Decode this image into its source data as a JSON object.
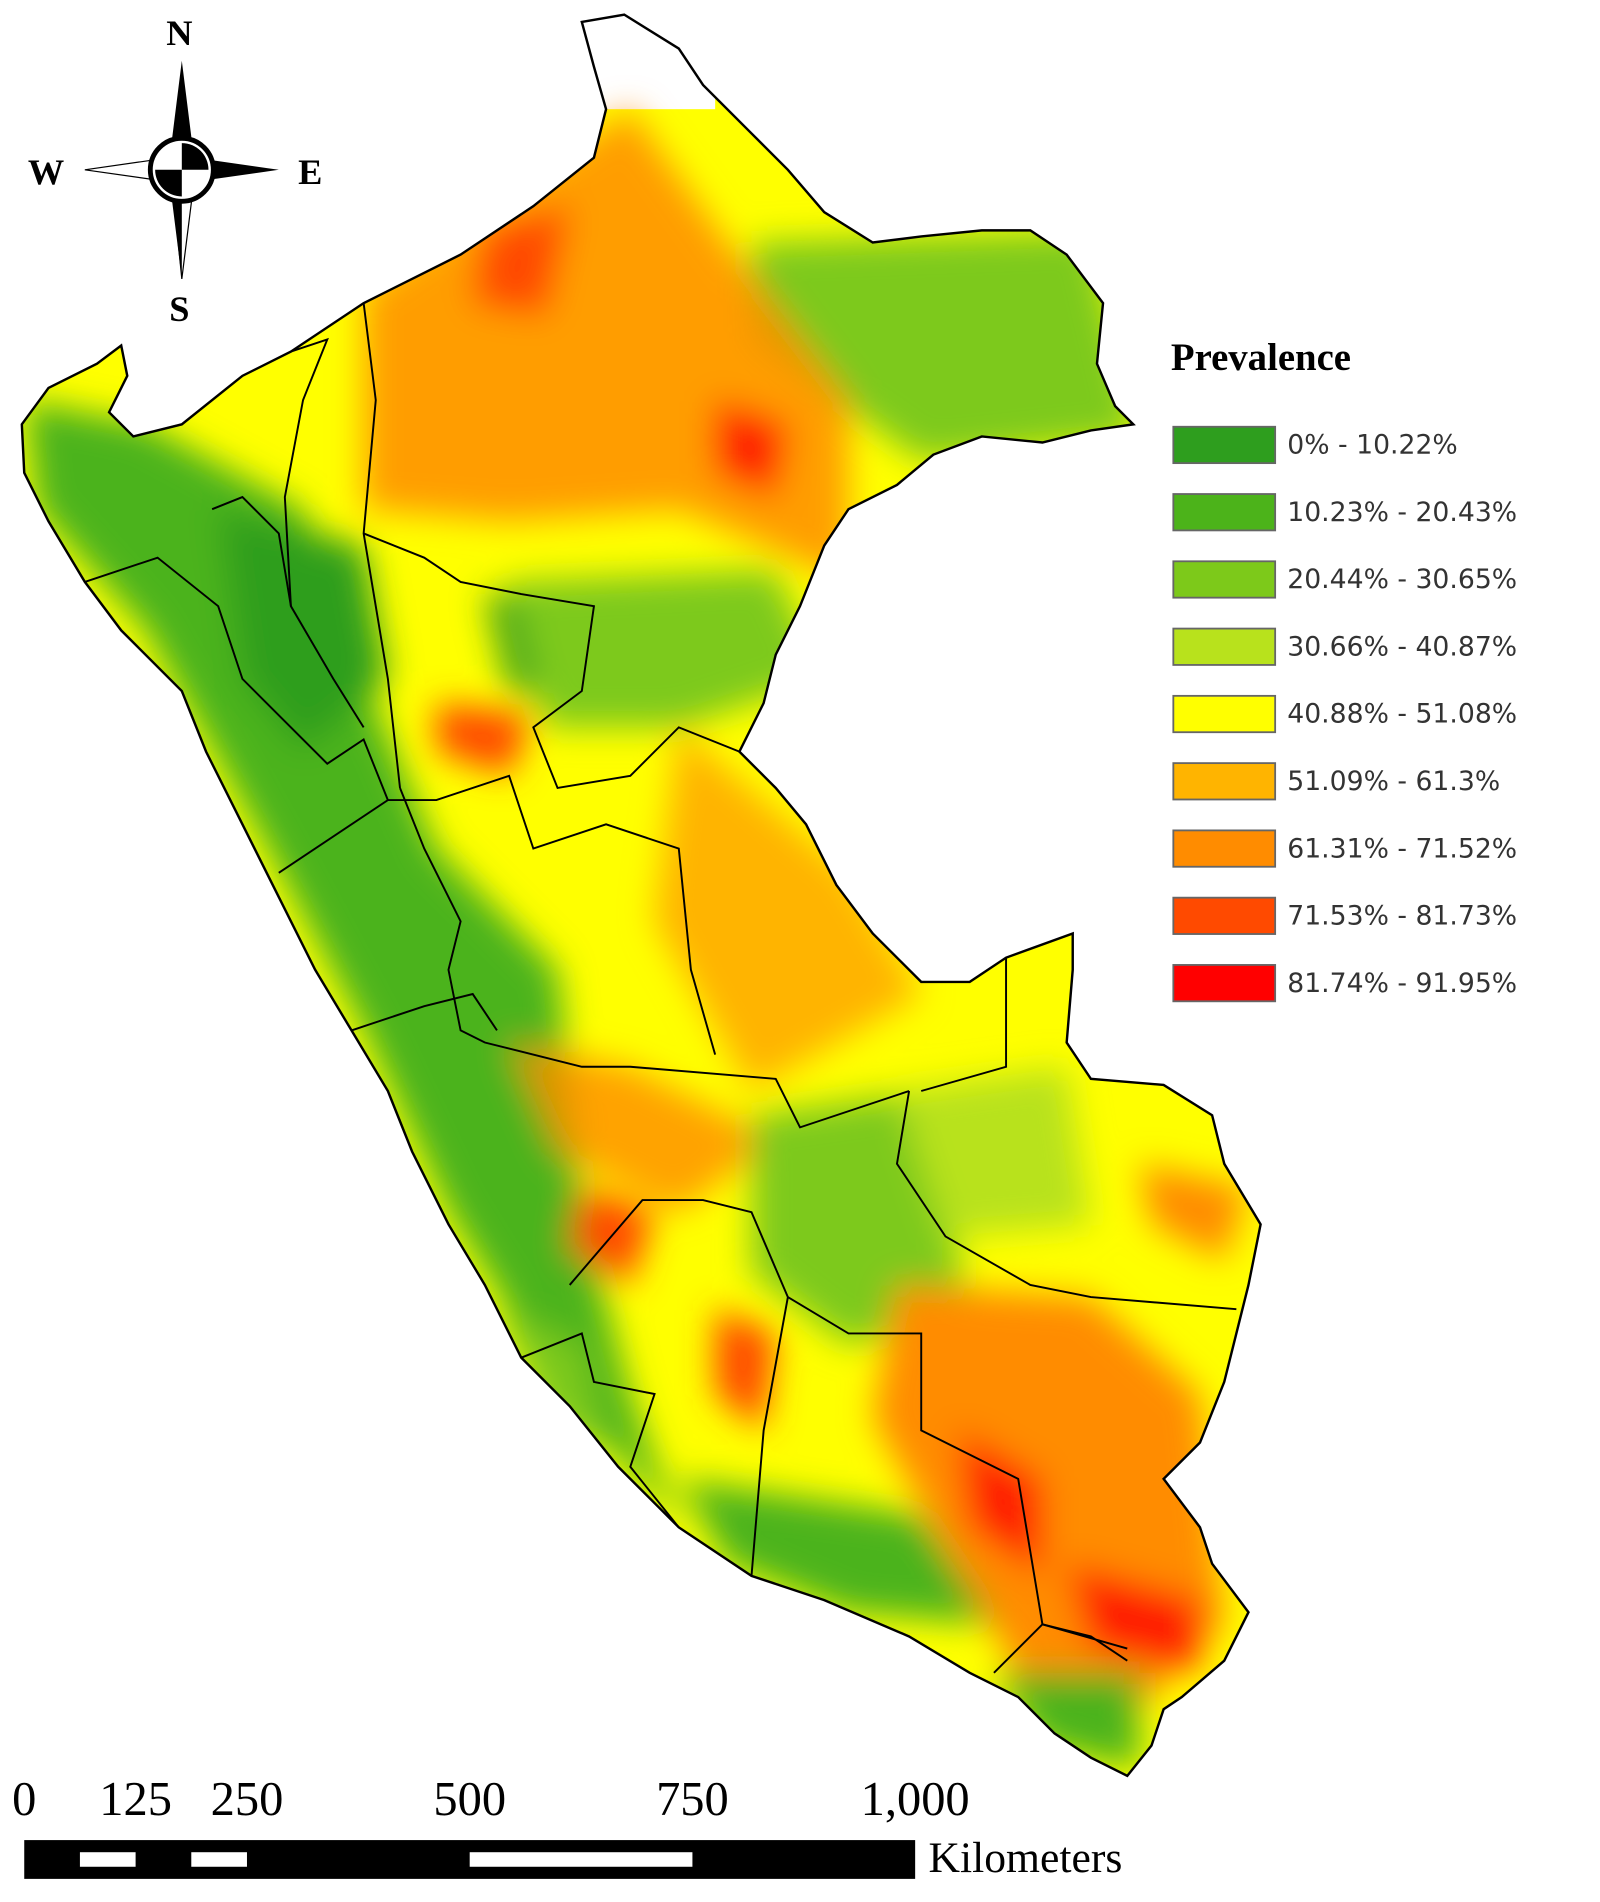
{
  "compass": {
    "north": "N",
    "south": "S",
    "east": "E",
    "west": "W"
  },
  "legend": {
    "title": "Prevalence",
    "items": [
      {
        "label": "0% - 10.22%",
        "color": "#2e9e1e"
      },
      {
        "label": "10.23% - 20.43%",
        "color": "#4cb31a"
      },
      {
        "label": "20.44% - 30.65%",
        "color": "#7dc91a"
      },
      {
        "label": "30.66% - 40.87%",
        "color": "#b8e21c"
      },
      {
        "label": "40.88% - 51.08%",
        "color": "#ffff00"
      },
      {
        "label": "51.09% - 61.3%",
        "color": "#ffb400"
      },
      {
        "label": "61.31% - 71.52%",
        "color": "#ff8c00"
      },
      {
        "label": "71.53% - 81.73%",
        "color": "#ff4a00"
      },
      {
        "label": "81.74% - 91.95%",
        "color": "#ff0000"
      }
    ]
  },
  "scale_bar": {
    "ticks": [
      0,
      125,
      250,
      500,
      750,
      {
        "value": 1000,
        "label": "1,000"
      }
    ],
    "unit": "Kilometers"
  }
}
